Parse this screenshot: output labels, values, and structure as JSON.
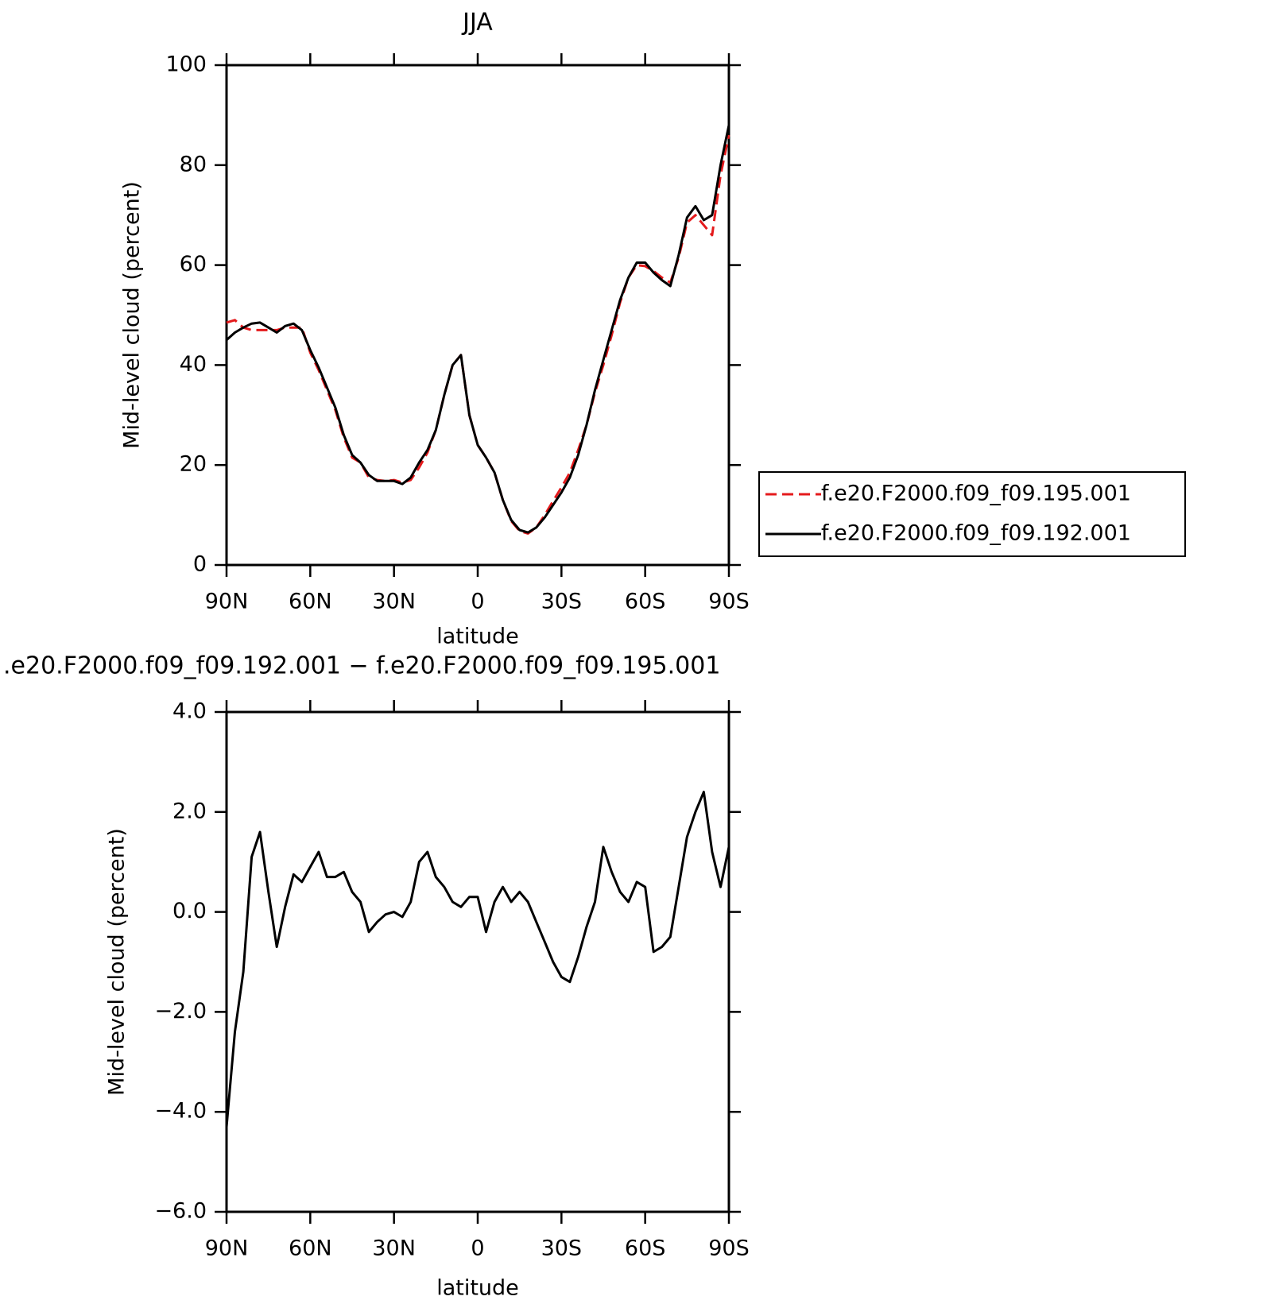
{
  "chart_data": [
    {
      "type": "line",
      "title": "JJA",
      "xlabel": "latitude",
      "ylabel": "Mid-level cloud (percent)",
      "x": [
        90,
        87,
        84,
        81,
        78,
        75,
        72,
        69,
        66,
        63,
        60,
        57,
        54,
        51,
        48,
        45,
        42,
        39,
        36,
        33,
        30,
        27,
        24,
        21,
        18,
        15,
        12,
        9,
        6,
        3,
        0,
        -3,
        -6,
        -9,
        -12,
        -15,
        -18,
        -21,
        -24,
        -27,
        -30,
        -33,
        -36,
        -39,
        -42,
        -45,
        -48,
        -51,
        -54,
        -57,
        -60,
        -63,
        -66,
        -69,
        -72,
        -75,
        -78,
        -81,
        -84,
        -87,
        -90
      ],
      "xlim": [
        90,
        -90
      ],
      "xticks": [
        {
          "value": 90,
          "label": "90N"
        },
        {
          "value": 60,
          "label": "60N"
        },
        {
          "value": 30,
          "label": "30N"
        },
        0,
        {
          "value": -30,
          "label": "30S"
        },
        {
          "value": -60,
          "label": "60S"
        },
        {
          "value": -90,
          "label": "90S"
        }
      ],
      "ylim": [
        0,
        100
      ],
      "yticks": [
        0,
        20,
        40,
        60,
        80,
        100
      ],
      "legend": "right",
      "series": [
        {
          "name": "f.e20.F2000.f09_f09.195.001",
          "color": "#e41a1c",
          "dash": "dashed",
          "values": [
            48.5,
            49,
            47.5,
            47,
            47,
            47,
            47,
            47.5,
            47.5,
            47.5,
            42.5,
            39,
            35,
            31,
            25.5,
            21.5,
            20.5,
            17.5,
            17,
            16.8,
            17,
            16.5,
            17,
            19.5,
            22.5,
            27,
            34,
            40,
            42,
            30,
            24,
            21.5,
            18.5,
            13,
            8.8,
            6.8,
            6.3,
            7.5,
            10,
            12.8,
            15.5,
            18.5,
            23,
            28,
            34.5,
            40,
            46,
            52.5,
            57.5,
            60,
            59.8,
            58.8,
            57.5,
            56.5,
            61.5,
            68.5,
            70,
            68,
            66,
            78,
            86
          ]
        },
        {
          "name": "f.e20.F2000.f09_f09.192.001",
          "color": "#000000",
          "dash": "solid",
          "values": [
            45,
            46.5,
            47.5,
            48.3,
            48.5,
            47.5,
            46.5,
            47.8,
            48.3,
            47,
            43,
            39.5,
            35.5,
            31.5,
            26,
            22,
            20.5,
            18,
            16.8,
            16.8,
            16.8,
            16.2,
            17.5,
            20.5,
            23,
            27,
            34,
            40,
            42,
            30,
            24,
            21.5,
            18.5,
            13,
            9,
            7,
            6.5,
            7.5,
            9.5,
            12,
            14.5,
            17.5,
            22,
            28,
            35,
            41,
            47,
            53,
            57.5,
            60.5,
            60.5,
            58.5,
            57,
            55.8,
            62,
            69.5,
            71.8,
            69,
            70,
            80,
            88
          ]
        }
      ]
    },
    {
      "type": "line",
      "title": ".e20.F2000.f09_f09.192.001 − f.e20.F2000.f09_f09.195.001",
      "xlabel": "latitude",
      "ylabel": "Mid-level cloud (percent)",
      "x": [
        90,
        87,
        84,
        81,
        78,
        75,
        72,
        69,
        66,
        63,
        60,
        57,
        54,
        51,
        48,
        45,
        42,
        39,
        36,
        33,
        30,
        27,
        24,
        21,
        18,
        15,
        12,
        9,
        6,
        3,
        0,
        -3,
        -6,
        -9,
        -12,
        -15,
        -18,
        -21,
        -24,
        -27,
        -30,
        -33,
        -36,
        -39,
        -42,
        -45,
        -48,
        -51,
        -54,
        -57,
        -60,
        -63,
        -66,
        -69,
        -72,
        -75,
        -78,
        -81,
        -84,
        -87,
        -90
      ],
      "xlim": [
        90,
        -90
      ],
      "xticks": [
        {
          "value": 90,
          "label": "90N"
        },
        {
          "value": 60,
          "label": "60N"
        },
        {
          "value": 30,
          "label": "30N"
        },
        0,
        {
          "value": -30,
          "label": "30S"
        },
        {
          "value": -60,
          "label": "60S"
        },
        {
          "value": -90,
          "label": "90S"
        }
      ],
      "ylim": [
        -6,
        4
      ],
      "yticks": [
        {
          "value": -6,
          "label": "−6.0"
        },
        {
          "value": -4,
          "label": "−4.0"
        },
        {
          "value": -2,
          "label": "−2.0"
        },
        {
          "value": 0,
          "label": "0.0"
        },
        {
          "value": 2,
          "label": "2.0"
        },
        {
          "value": 4,
          "label": "4.0"
        }
      ],
      "series": [
        {
          "color": "#000000",
          "dash": "solid",
          "values": [
            -4.3,
            -2.4,
            -1.2,
            1.1,
            1.6,
            0.4,
            -0.7,
            0.1,
            0.75,
            0.6,
            0.9,
            1.2,
            0.7,
            0.7,
            0.8,
            0.4,
            0.2,
            -0.4,
            -0.2,
            -0.05,
            0,
            -0.1,
            0.2,
            1,
            1.2,
            0.7,
            0.5,
            0.2,
            0.1,
            0.3,
            0.3,
            -0.4,
            0.2,
            0.5,
            0.2,
            0.4,
            0.2,
            -0.2,
            -0.6,
            -1,
            -1.3,
            -1.4,
            -0.9,
            -0.3,
            0.2,
            1.3,
            0.8,
            0.4,
            0.2,
            0.6,
            0.5,
            -0.8,
            -0.7,
            -0.5,
            0.5,
            1.5,
            2,
            2.4,
            1.2,
            0.5,
            1.3
          ]
        }
      ]
    }
  ]
}
